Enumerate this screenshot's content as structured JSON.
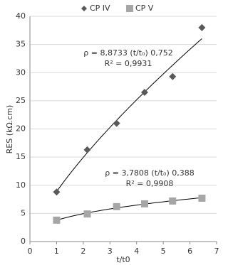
{
  "chart_data": {
    "type": "scatter",
    "x_label": "t/t0",
    "y_label": "RES (kΩ.cm)",
    "xlim": [
      0,
      7
    ],
    "xticks": [
      0,
      1,
      2,
      3,
      4,
      5,
      6,
      7
    ],
    "ylim": [
      0,
      40
    ],
    "yticks": [
      0,
      5,
      10,
      15,
      20,
      25,
      30,
      35,
      40
    ],
    "grid": true,
    "legend": "top",
    "series": [
      {
        "name": "CP IV",
        "color": "#595959",
        "marker": "diamond",
        "x": [
          1.0,
          2.15,
          3.25,
          4.3,
          5.35,
          6.45
        ],
        "values": [
          8.8,
          16.3,
          21.0,
          26.5,
          29.3,
          38.0
        ],
        "trendline": {
          "coefficient": 8.8733,
          "exponent": 0.752,
          "equation": "ρ = 8,8733 (t/t₀) 0,752",
          "r2_label": "R² = 0,9931"
        }
      },
      {
        "name": "CP V",
        "color": "#a6a6a6",
        "marker": "square",
        "x": [
          1.0,
          2.15,
          3.25,
          4.3,
          5.35,
          6.45
        ],
        "values": [
          3.8,
          4.9,
          6.2,
          6.7,
          7.2,
          7.7
        ],
        "trendline": {
          "coefficient": 3.7808,
          "exponent": 0.388,
          "equation": "ρ = 3,7808 (t/t₀) 0,388",
          "r2_label": "R² = 0,9908"
        }
      }
    ]
  }
}
